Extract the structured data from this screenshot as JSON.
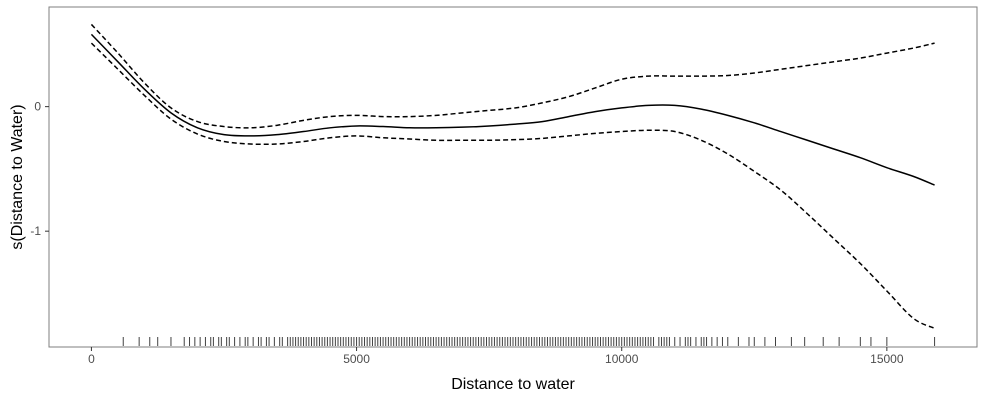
{
  "chart_data": {
    "type": "line",
    "title": "",
    "xlabel": "Distance to water",
    "ylabel": "s(Distance to Water)",
    "xlim": [
      -800,
      16700
    ],
    "ylim": [
      -1.93,
      0.8
    ],
    "x_ticks": [
      0,
      5000,
      10000,
      15000
    ],
    "y_ticks": [
      -1,
      0
    ],
    "grid": false,
    "legend": "none",
    "colors": {
      "line": "#000000",
      "frame": "#7f7f7f",
      "rug": "#000000"
    },
    "series": [
      {
        "role": "estimate",
        "style": "solid",
        "x": [
          0,
          500,
          1000,
          1500,
          2000,
          2500,
          3000,
          3500,
          4000,
          4500,
          5000,
          5500,
          6000,
          6500,
          7000,
          7500,
          8000,
          8500,
          9000,
          9500,
          10000,
          10500,
          11000,
          11500,
          12000,
          12500,
          13000,
          13500,
          14000,
          14500,
          15000,
          15500,
          15900
        ],
        "y": [
          0.58,
          0.36,
          0.14,
          -0.05,
          -0.17,
          -0.225,
          -0.235,
          -0.225,
          -0.2,
          -0.17,
          -0.155,
          -0.16,
          -0.17,
          -0.17,
          -0.165,
          -0.155,
          -0.14,
          -0.12,
          -0.08,
          -0.04,
          -0.01,
          0.01,
          0.01,
          -0.02,
          -0.07,
          -0.13,
          -0.2,
          -0.27,
          -0.34,
          -0.41,
          -0.49,
          -0.56,
          -0.63
        ]
      },
      {
        "role": "upper",
        "style": "dashed",
        "x": [
          0,
          500,
          1000,
          1500,
          2000,
          2500,
          3000,
          3500,
          4000,
          4500,
          5000,
          5500,
          6000,
          6500,
          7000,
          7500,
          8000,
          8500,
          9000,
          9500,
          10000,
          10500,
          11000,
          11500,
          12000,
          12500,
          13000,
          13500,
          14000,
          14500,
          15000,
          15500,
          15900
        ],
        "y": [
          0.66,
          0.43,
          0.19,
          -0.01,
          -0.12,
          -0.16,
          -0.17,
          -0.15,
          -0.11,
          -0.08,
          -0.07,
          -0.08,
          -0.08,
          -0.07,
          -0.05,
          -0.03,
          -0.01,
          0.03,
          0.08,
          0.15,
          0.22,
          0.245,
          0.245,
          0.245,
          0.25,
          0.27,
          0.3,
          0.33,
          0.36,
          0.39,
          0.43,
          0.47,
          0.51
        ]
      },
      {
        "role": "lower",
        "style": "dashed",
        "x": [
          0,
          500,
          1000,
          1500,
          2000,
          2500,
          3000,
          3500,
          4000,
          4500,
          5000,
          5500,
          6000,
          6500,
          7000,
          7500,
          8000,
          8500,
          9000,
          9500,
          10000,
          10500,
          11000,
          11500,
          12000,
          12500,
          13000,
          13500,
          14000,
          14500,
          15000,
          15500,
          15900
        ],
        "y": [
          0.51,
          0.3,
          0.09,
          -0.1,
          -0.22,
          -0.28,
          -0.3,
          -0.3,
          -0.28,
          -0.25,
          -0.235,
          -0.25,
          -0.26,
          -0.27,
          -0.27,
          -0.27,
          -0.265,
          -0.255,
          -0.235,
          -0.215,
          -0.2,
          -0.19,
          -0.2,
          -0.27,
          -0.38,
          -0.52,
          -0.67,
          -0.86,
          -1.06,
          -1.26,
          -1.48,
          -1.7,
          -1.78
        ]
      }
    ],
    "rug": [
      600,
      900,
      1100,
      1250,
      1500,
      1750,
      1850,
      1950,
      2050,
      2150,
      2250,
      2300,
      2400,
      2450,
      2550,
      2600,
      2700,
      2800,
      2900,
      2950,
      3050,
      3150,
      3200,
      3300,
      3350,
      3450,
      3550,
      3600,
      3700,
      3750,
      3800,
      3850,
      3900,
      3950,
      4000,
      4050,
      4100,
      4150,
      4200,
      4250,
      4300,
      4350,
      4400,
      4450,
      4500,
      4550,
      4600,
      4650,
      4700,
      4750,
      4800,
      4850,
      4900,
      4950,
      5000,
      5050,
      5100,
      5150,
      5200,
      5250,
      5300,
      5350,
      5400,
      5450,
      5500,
      5550,
      5600,
      5650,
      5700,
      5750,
      5800,
      5850,
      5900,
      5950,
      6000,
      6050,
      6100,
      6150,
      6200,
      6250,
      6300,
      6350,
      6400,
      6450,
      6500,
      6550,
      6600,
      6650,
      6700,
      6750,
      6800,
      6850,
      6900,
      6950,
      7000,
      7050,
      7100,
      7150,
      7200,
      7250,
      7300,
      7350,
      7400,
      7450,
      7500,
      7550,
      7600,
      7650,
      7700,
      7750,
      7800,
      7850,
      7900,
      7950,
      8000,
      8050,
      8100,
      8150,
      8200,
      8250,
      8300,
      8350,
      8400,
      8450,
      8500,
      8550,
      8600,
      8650,
      8700,
      8750,
      8800,
      8850,
      8900,
      8950,
      9000,
      9050,
      9100,
      9150,
      9200,
      9250,
      9300,
      9350,
      9400,
      9450,
      9500,
      9550,
      9600,
      9650,
      9700,
      9750,
      9800,
      9850,
      9900,
      9950,
      10000,
      10050,
      10100,
      10150,
      10200,
      10250,
      10300,
      10350,
      10400,
      10450,
      10500,
      10550,
      10600,
      10700,
      10750,
      10800,
      10850,
      10900,
      11000,
      11100,
      11200,
      11250,
      11300,
      11400,
      11500,
      11550,
      11600,
      11700,
      11800,
      11900,
      12000,
      12200,
      12400,
      12500,
      12700,
      12900,
      13200,
      13450,
      13800,
      14100,
      14500,
      14700,
      15000,
      15900
    ]
  }
}
